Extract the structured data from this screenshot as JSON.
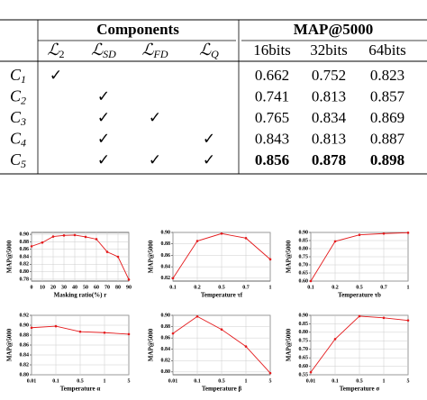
{
  "table": {
    "group_headers": [
      "Components",
      "MAP@5000"
    ],
    "components": [
      {
        "symbol": "ℒ",
        "sub": "2"
      },
      {
        "symbol": "ℒ",
        "sub": "SD"
      },
      {
        "symbol": "ℒ",
        "sub": "FD"
      },
      {
        "symbol": "ℒ",
        "sub": "Q"
      }
    ],
    "bits": [
      "16bits",
      "32bits",
      "64bits"
    ],
    "rows": [
      {
        "label": {
          "symbol": "C",
          "sub": "1"
        },
        "checks": [
          "✓",
          null,
          null,
          null
        ],
        "values": [
          0.662,
          0.752,
          0.823
        ]
      },
      {
        "label": {
          "symbol": "C",
          "sub": "2"
        },
        "checks": [
          null,
          "✓",
          null,
          null
        ],
        "values": [
          0.741,
          0.813,
          0.857
        ]
      },
      {
        "label": {
          "symbol": "C",
          "sub": "3"
        },
        "checks": [
          null,
          "✓",
          "✓",
          null
        ],
        "values": [
          0.765,
          0.834,
          0.869
        ]
      },
      {
        "label": {
          "symbol": "C",
          "sub": "4"
        },
        "checks": [
          null,
          "✓",
          null,
          "✓"
        ],
        "values": [
          0.843,
          0.813,
          0.887
        ]
      },
      {
        "label": {
          "symbol": "C",
          "sub": "5"
        },
        "checks": [
          null,
          "✓",
          "✓",
          "✓"
        ],
        "values": [
          0.856,
          0.878,
          0.898
        ],
        "bold": true
      }
    ]
  },
  "chart_data": [
    {
      "type": "line",
      "x_label": "Masking ratio(%) r",
      "y_label": "MAP@5000",
      "color": "#e41a1c",
      "x": [
        0,
        10,
        20,
        30,
        40,
        50,
        60,
        70,
        80,
        90
      ],
      "values": [
        0.868,
        0.878,
        0.894,
        0.897,
        0.898,
        0.893,
        0.887,
        0.853,
        0.84,
        0.779
      ],
      "xlim": [
        0,
        90
      ],
      "xticks": [
        0,
        10,
        20,
        30,
        40,
        50,
        60,
        70,
        80,
        90
      ],
      "ylim": [
        0.775,
        0.905
      ],
      "yticks": [
        {
          "value": 0.78,
          "label": "0.78"
        },
        {
          "value": 0.8,
          "label": "0.80"
        },
        {
          "value": 0.82,
          "label": "0.82"
        },
        {
          "value": 0.84,
          "label": "0.84"
        },
        {
          "value": 0.86,
          "label": "0.86"
        },
        {
          "value": 0.88,
          "label": "0.88"
        },
        {
          "value": 0.9,
          "label": "0.90"
        }
      ],
      "grid": true
    },
    {
      "type": "line",
      "x_label": "Temperature τf",
      "y_label": "MAP@5000",
      "color": "#e41a1c",
      "categories": [
        "0.1",
        "0.2",
        "0.5",
        "0.7",
        "1"
      ],
      "values": [
        0.82,
        0.885,
        0.898,
        0.89,
        0.853
      ],
      "ylim": [
        0.815,
        0.9
      ],
      "yticks": [
        {
          "value": 0.82,
          "label": "0.82"
        },
        {
          "value": 0.84,
          "label": "0.84"
        },
        {
          "value": 0.86,
          "label": "0.86"
        },
        {
          "value": 0.88,
          "label": "0.88"
        },
        {
          "value": 0.9,
          "label": "0.90"
        }
      ],
      "grid": true
    },
    {
      "type": "line",
      "x_label": "Temperature τb",
      "y_label": "MAP@5000",
      "color": "#e41a1c",
      "categories": [
        "0.1",
        "0.2",
        "0.5",
        "0.7",
        "1"
      ],
      "values": [
        0.6,
        0.845,
        0.885,
        0.893,
        0.898
      ],
      "ylim": [
        0.6,
        0.9
      ],
      "yticks": [
        {
          "value": 0.6,
          "label": "0.60"
        },
        {
          "value": 0.65,
          "label": "0.65"
        },
        {
          "value": 0.7,
          "label": "0.70"
        },
        {
          "value": 0.75,
          "label": "0.75"
        },
        {
          "value": 0.8,
          "label": "0.80"
        },
        {
          "value": 0.85,
          "label": "0.85"
        },
        {
          "value": 0.9,
          "label": "0.90"
        }
      ],
      "grid": true
    },
    {
      "type": "line",
      "x_label": "Temperature α",
      "y_label": "MAP@5000",
      "color": "#e41a1c",
      "categories": [
        "0.01",
        "0.1",
        "0.5",
        "1",
        "5"
      ],
      "values": [
        0.895,
        0.898,
        0.887,
        0.885,
        0.882
      ],
      "ylim": [
        0.8,
        0.92
      ],
      "yticks": [
        {
          "value": 0.8,
          "label": "0.80"
        },
        {
          "value": 0.82,
          "label": "0.82"
        },
        {
          "value": 0.84,
          "label": "0.84"
        },
        {
          "value": 0.86,
          "label": "0.86"
        },
        {
          "value": 0.88,
          "label": "0.88"
        },
        {
          "value": 0.9,
          "label": "0.90"
        },
        {
          "value": 0.92,
          "label": "0.92"
        }
      ],
      "grid": true
    },
    {
      "type": "line",
      "x_label": "Temperature β",
      "y_label": "MAP@5000",
      "color": "#e41a1c",
      "categories": [
        "0.01",
        "0.1",
        "0.5",
        "1",
        "5"
      ],
      "values": [
        0.868,
        0.898,
        0.875,
        0.845,
        0.798
      ],
      "ylim": [
        0.795,
        0.9
      ],
      "yticks": [
        {
          "value": 0.8,
          "label": "0.80"
        },
        {
          "value": 0.82,
          "label": "0.82"
        },
        {
          "value": 0.84,
          "label": "0.84"
        },
        {
          "value": 0.86,
          "label": "0.86"
        },
        {
          "value": 0.88,
          "label": "0.88"
        },
        {
          "value": 0.9,
          "label": "0.90"
        }
      ],
      "grid": true
    },
    {
      "type": "line",
      "x_label": "Temperature σ",
      "y_label": "MAP@5000",
      "color": "#e41a1c",
      "categories": [
        "0.01",
        "0.1",
        "0.5",
        "1",
        "5"
      ],
      "values": [
        0.565,
        0.76,
        0.895,
        0.885,
        0.87
      ],
      "ylim": [
        0.55,
        0.9
      ],
      "yticks": [
        {
          "value": 0.55,
          "label": "0.55"
        },
        {
          "value": 0.6,
          "label": "0.60"
        },
        {
          "value": 0.65,
          "label": "0.65"
        },
        {
          "value": 0.7,
          "label": "0.70"
        },
        {
          "value": 0.75,
          "label": "0.75"
        },
        {
          "value": 0.8,
          "label": "0.80"
        },
        {
          "value": 0.85,
          "label": "0.85"
        },
        {
          "value": 0.9,
          "label": "0.90"
        }
      ],
      "grid": true
    }
  ]
}
